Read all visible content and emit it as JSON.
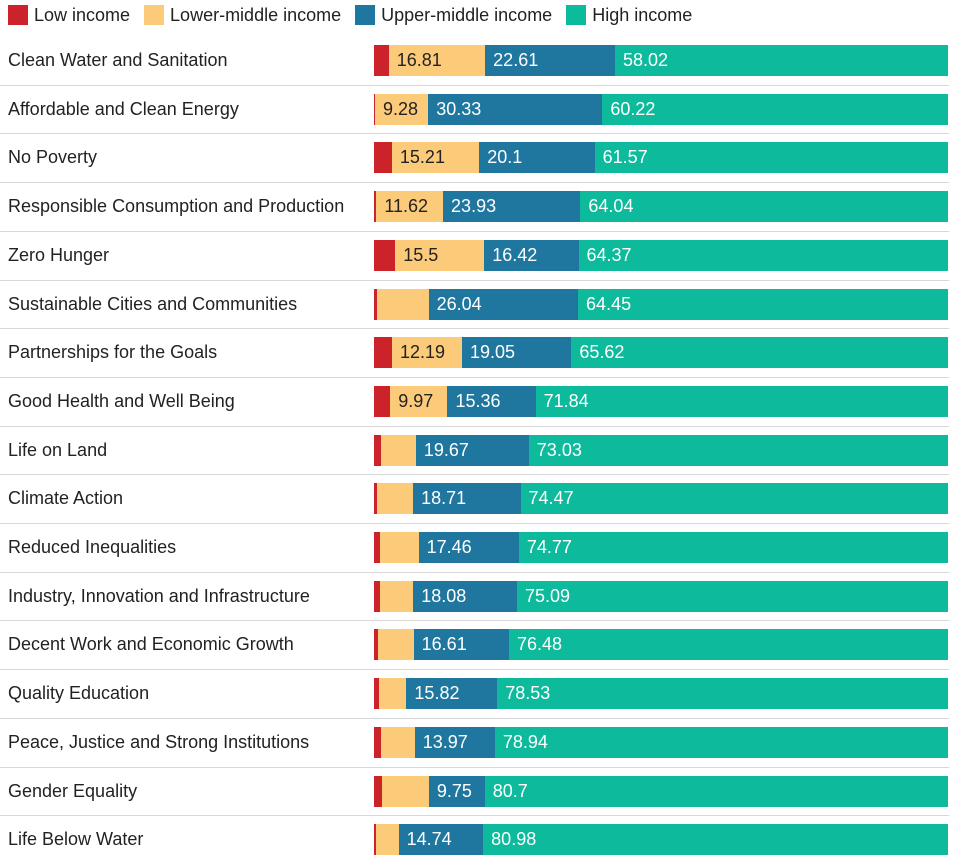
{
  "chart_data": {
    "type": "bar",
    "orientation": "horizontal",
    "stacked": true,
    "normalized_percent": true,
    "legend_position": "top-left",
    "series": [
      {
        "name": "Low income",
        "color": "#cc2229"
      },
      {
        "name": "Lower-middle income",
        "color": "#fbcb7a"
      },
      {
        "name": "Upper-middle income",
        "color": "#1f77a0"
      },
      {
        "name": "High income",
        "color": "#0dbb9c"
      }
    ],
    "rows": [
      {
        "category": "Clean Water and Sanitation",
        "values": [
          2.56,
          16.81,
          22.61,
          58.02
        ],
        "labels": [
          "",
          "16.81",
          "22.61",
          "58.02"
        ]
      },
      {
        "category": "Affordable and Clean Energy",
        "values": [
          0.17,
          9.28,
          30.33,
          60.22
        ],
        "labels": [
          "",
          "9.28",
          "30.33",
          "60.22"
        ]
      },
      {
        "category": "No Poverty",
        "values": [
          3.12,
          15.21,
          20.1,
          61.57
        ],
        "labels": [
          "",
          "15.21",
          "20.1",
          "61.57"
        ]
      },
      {
        "category": "Responsible Consumption and Production",
        "values": [
          0.41,
          11.62,
          23.93,
          64.04
        ],
        "labels": [
          "",
          "11.62",
          "23.93",
          "64.04"
        ]
      },
      {
        "category": "Zero Hunger",
        "values": [
          3.71,
          15.5,
          16.42,
          64.37
        ],
        "labels": [
          "",
          "15.5",
          "16.42",
          "64.37"
        ]
      },
      {
        "category": "Sustainable Cities and Communities",
        "values": [
          0.6,
          8.91,
          26.04,
          64.45
        ],
        "labels": [
          "",
          "",
          "26.04",
          "64.45"
        ]
      },
      {
        "category": "Partnerships for the Goals",
        "values": [
          3.14,
          12.19,
          19.05,
          65.62
        ],
        "labels": [
          "",
          "12.19",
          "19.05",
          "65.62"
        ]
      },
      {
        "category": "Good Health and Well Being",
        "values": [
          2.83,
          9.97,
          15.36,
          71.84
        ],
        "labels": [
          "",
          "9.97",
          "15.36",
          "71.84"
        ]
      },
      {
        "category": "Life on Land",
        "values": [
          1.22,
          6.08,
          19.67,
          73.03
        ],
        "labels": [
          "",
          "",
          "19.67",
          "73.03"
        ]
      },
      {
        "category": "Climate Action",
        "values": [
          0.5,
          6.32,
          18.71,
          74.47
        ],
        "labels": [
          "",
          "",
          "18.71",
          "74.47"
        ]
      },
      {
        "category": "Reduced Inequalities",
        "values": [
          0.98,
          6.79,
          17.46,
          74.77
        ],
        "labels": [
          "",
          "",
          "17.46",
          "74.77"
        ]
      },
      {
        "category": "Industry, Innovation and Infrastructure",
        "values": [
          1.02,
          5.81,
          18.08,
          75.09
        ],
        "labels": [
          "",
          "",
          "18.08",
          "75.09"
        ]
      },
      {
        "category": "Decent Work and Economic Growth",
        "values": [
          0.61,
          6.3,
          16.61,
          76.48
        ],
        "labels": [
          "",
          "",
          "16.61",
          "76.48"
        ]
      },
      {
        "category": "Quality Education",
        "values": [
          0.94,
          4.71,
          15.82,
          78.53
        ],
        "labels": [
          "",
          "",
          "15.82",
          "78.53"
        ]
      },
      {
        "category": "Peace, Justice and Strong Institutions",
        "values": [
          1.22,
          5.87,
          13.97,
          78.94
        ],
        "labels": [
          "",
          "",
          "13.97",
          "78.94"
        ]
      },
      {
        "category": "Gender Equality",
        "values": [
          1.46,
          8.09,
          9.75,
          80.7
        ],
        "labels": [
          "",
          "",
          "9.75",
          "80.7"
        ]
      },
      {
        "category": "Life Below Water",
        "values": [
          0.41,
          3.87,
          14.74,
          80.98
        ],
        "labels": [
          "",
          "",
          "14.74",
          "80.98"
        ]
      }
    ],
    "title": "",
    "xlabel": "",
    "ylabel": ""
  }
}
